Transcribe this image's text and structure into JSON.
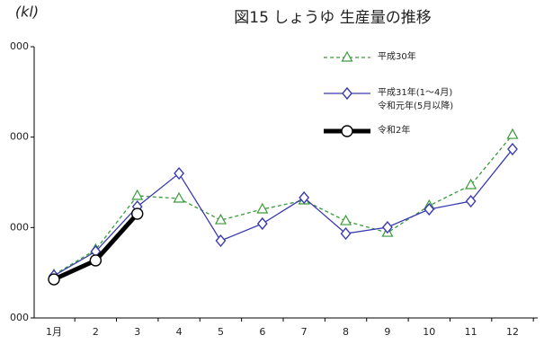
{
  "chart_data": {
    "type": "line",
    "title": "図15 しょうゆ 生産量の推移",
    "unit": "(kl)",
    "categories": [
      "1月",
      "2",
      "3",
      "4",
      "5",
      "6",
      "7",
      "8",
      "9",
      "10",
      "11",
      "12"
    ],
    "ylim": [
      40000,
      70000
    ],
    "yticks": [
      {
        "value": 40000,
        "label": "000"
      },
      {
        "value": 50000,
        "label": "000"
      },
      {
        "value": 60000,
        "label": "000"
      },
      {
        "value": 70000,
        "label": "000"
      }
    ],
    "series": [
      {
        "name": "平成30年",
        "color": "#3a9a3a",
        "marker": "triangle",
        "dashed": true,
        "values": [
          44770,
          47550,
          53510,
          53210,
          50820,
          52020,
          53010,
          50720,
          49430,
          52410,
          54700,
          60260
        ]
      },
      {
        "name": "平成31年(1～4月)\n令和元年(5月以降)",
        "color": "#3b3bb0",
        "marker": "diamond",
        "dashed": false,
        "values": [
          44670,
          47350,
          52310,
          55990,
          48540,
          50430,
          53310,
          49330,
          50030,
          52020,
          52910,
          58670
        ]
      },
      {
        "name": "令和2年",
        "color": "#000000",
        "marker": "circle",
        "dashed": false,
        "values": [
          44270,
          46360,
          51520,
          null,
          null,
          null,
          null,
          null,
          null,
          null,
          null,
          null
        ]
      }
    ]
  }
}
